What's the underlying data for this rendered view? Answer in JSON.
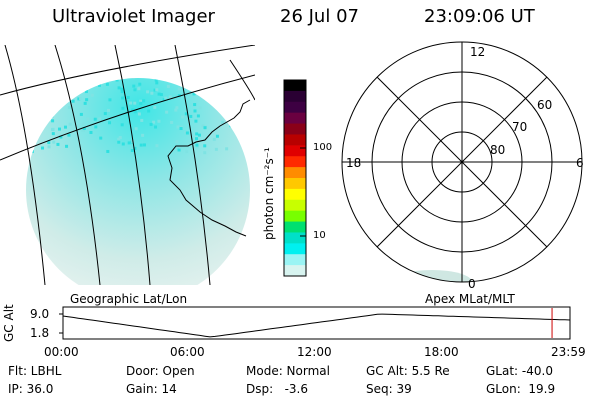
{
  "header": {
    "title": "Ultraviolet Imager",
    "date": "26 Jul 07",
    "time": "23:09:06 UT"
  },
  "colorbar": {
    "label": "photon cm⁻²s⁻¹",
    "ticks": [
      "100",
      "10"
    ],
    "colors": [
      "#000000",
      "#2a0033",
      "#3d0042",
      "#6a0040",
      "#8a0018",
      "#b80000",
      "#e00000",
      "#ff2a00",
      "#ff8c00",
      "#ffc800",
      "#ffff00",
      "#c8ff00",
      "#78ff00",
      "#00e070",
      "#00e0c8",
      "#00f0f0",
      "#9af4f4",
      "#d8f4f0"
    ]
  },
  "polar": {
    "mlt_labels": [
      "12",
      "18",
      "6",
      "0"
    ],
    "lat_labels": [
      "60",
      "70",
      "80"
    ]
  },
  "timeline": {
    "y_label": "GC Alt",
    "y_ticks": [
      "9.0",
      "1.8"
    ],
    "left_caption": "Geographic Lat/Lon",
    "right_caption": "Apex MLat/MLT",
    "x_ticks": [
      "00:00",
      "06:00",
      "12:00",
      "18:00",
      "23:59"
    ],
    "current_time_hours": 23.15
  },
  "status": [
    [
      "Flt: LBHL",
      "Door: Open",
      "Mode: Normal",
      "GC Alt: 5.5 Re",
      "GLat: -40.0"
    ],
    [
      "IP: 36.0",
      "Gain: 14",
      "Dsp:   -3.6",
      "Seq: 39",
      "GLon:  19.9"
    ]
  ],
  "colors": {
    "aurora": "#2fe0e0",
    "now_marker": "#cc0000"
  }
}
